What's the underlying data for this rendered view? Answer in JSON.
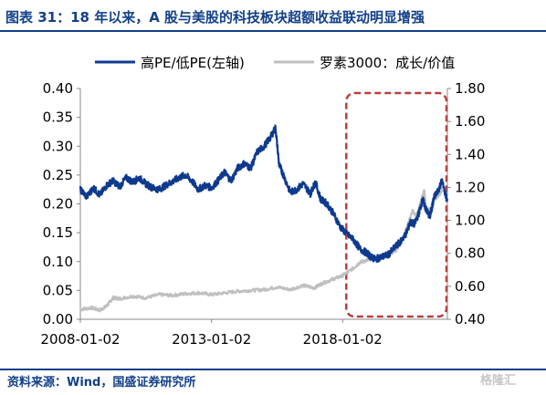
{
  "header": {
    "title": "图表 31：18 年以来，A 股与美股的科技板块超额收益联动明显增强"
  },
  "footer": {
    "source": "资料来源：Wind，国盛证券研究所",
    "watermark": "格隆汇"
  },
  "colors": {
    "brand": "#12408a",
    "series_primary": "#0d3a8e",
    "series_secondary": "#c0c0c0",
    "highlight_box": "#b8413f"
  },
  "chart_data": {
    "type": "line",
    "title": "",
    "xlabel": "",
    "ylabel": "",
    "x_ticks": [
      "2008-01-02",
      "2013-01-02",
      "2018-01-02"
    ],
    "y_left": {
      "lim": [
        0.0,
        0.4
      ],
      "ticks": [
        "0.00",
        "0.05",
        "0.10",
        "0.15",
        "0.20",
        "0.25",
        "0.30",
        "0.35",
        "0.40"
      ]
    },
    "y_right": {
      "lim": [
        0.4,
        1.8
      ],
      "ticks": [
        "0.40",
        "0.60",
        "0.80",
        "1.00",
        "1.20",
        "1.40",
        "1.60",
        "1.80"
      ]
    },
    "legend_position": "top",
    "x_domain": [
      "2008-01-02",
      "2021-12-31"
    ],
    "series": [
      {
        "name": "高PE/低PE(左轴)",
        "axis": "left",
        "color": "#0d3a8e",
        "points": [
          [
            "2008-01-02",
            0.225
          ],
          [
            "2008-04-01",
            0.212
          ],
          [
            "2008-07-01",
            0.228
          ],
          [
            "2008-10-01",
            0.215
          ],
          [
            "2009-01-02",
            0.232
          ],
          [
            "2009-04-01",
            0.24
          ],
          [
            "2009-07-01",
            0.23
          ],
          [
            "2009-10-01",
            0.245
          ],
          [
            "2010-01-04",
            0.238
          ],
          [
            "2010-04-01",
            0.245
          ],
          [
            "2010-07-01",
            0.235
          ],
          [
            "2010-10-01",
            0.228
          ],
          [
            "2011-01-04",
            0.225
          ],
          [
            "2011-04-01",
            0.232
          ],
          [
            "2011-07-01",
            0.238
          ],
          [
            "2011-10-01",
            0.245
          ],
          [
            "2012-01-04",
            0.25
          ],
          [
            "2012-04-01",
            0.24
          ],
          [
            "2012-07-01",
            0.225
          ],
          [
            "2012-10-01",
            0.232
          ],
          [
            "2013-01-04",
            0.228
          ],
          [
            "2013-04-01",
            0.24
          ],
          [
            "2013-07-01",
            0.255
          ],
          [
            "2013-10-01",
            0.24
          ],
          [
            "2014-01-02",
            0.262
          ],
          [
            "2014-04-01",
            0.27
          ],
          [
            "2014-07-01",
            0.262
          ],
          [
            "2014-10-01",
            0.29
          ],
          [
            "2015-01-05",
            0.3
          ],
          [
            "2015-04-01",
            0.315
          ],
          [
            "2015-06-12",
            0.332
          ],
          [
            "2015-08-01",
            0.268
          ],
          [
            "2015-10-01",
            0.25
          ],
          [
            "2016-01-04",
            0.22
          ],
          [
            "2016-04-01",
            0.225
          ],
          [
            "2016-07-01",
            0.235
          ],
          [
            "2016-10-10",
            0.218
          ],
          [
            "2016-12-20",
            0.238
          ],
          [
            "2017-03-01",
            0.208
          ],
          [
            "2017-06-01",
            0.2
          ],
          [
            "2017-09-01",
            0.182
          ],
          [
            "2017-12-01",
            0.16
          ],
          [
            "2018-03-01",
            0.148
          ],
          [
            "2018-06-01",
            0.138
          ],
          [
            "2018-09-01",
            0.122
          ],
          [
            "2018-12-03",
            0.115
          ],
          [
            "2019-02-01",
            0.108
          ],
          [
            "2019-04-01",
            0.104
          ],
          [
            "2019-07-01",
            0.108
          ],
          [
            "2019-10-01",
            0.112
          ],
          [
            "2020-01-02",
            0.125
          ],
          [
            "2020-03-20",
            0.135
          ],
          [
            "2020-06-01",
            0.148
          ],
          [
            "2020-08-01",
            0.168
          ],
          [
            "2020-10-01",
            0.165
          ],
          [
            "2020-12-01",
            0.185
          ],
          [
            "2021-01-20",
            0.208
          ],
          [
            "2021-03-10",
            0.19
          ],
          [
            "2021-05-01",
            0.178
          ],
          [
            "2021-06-01",
            0.195
          ],
          [
            "2021-07-01",
            0.212
          ],
          [
            "2021-09-01",
            0.225
          ],
          [
            "2021-10-15",
            0.24
          ],
          [
            "2021-12-31",
            0.205
          ]
        ]
      },
      {
        "name": "罗素3000：成长/价值",
        "axis": "right",
        "color": "#c0c0c0",
        "points": [
          [
            "2008-01-02",
            0.46
          ],
          [
            "2008-06-01",
            0.47
          ],
          [
            "2008-10-01",
            0.455
          ],
          [
            "2009-01-02",
            0.48
          ],
          [
            "2009-04-01",
            0.53
          ],
          [
            "2009-07-01",
            0.525
          ],
          [
            "2010-01-04",
            0.54
          ],
          [
            "2010-07-01",
            0.53
          ],
          [
            "2011-01-04",
            0.55
          ],
          [
            "2011-07-01",
            0.545
          ],
          [
            "2012-01-04",
            0.555
          ],
          [
            "2012-07-01",
            0.56
          ],
          [
            "2013-01-04",
            0.55
          ],
          [
            "2013-07-01",
            0.56
          ],
          [
            "2014-01-02",
            0.57
          ],
          [
            "2014-07-01",
            0.575
          ],
          [
            "2015-01-05",
            0.58
          ],
          [
            "2015-07-01",
            0.595
          ],
          [
            "2016-01-04",
            0.58
          ],
          [
            "2016-07-01",
            0.605
          ],
          [
            "2016-12-01",
            0.59
          ],
          [
            "2017-04-01",
            0.62
          ],
          [
            "2017-09-01",
            0.645
          ],
          [
            "2018-01-02",
            0.665
          ],
          [
            "2018-06-01",
            0.71
          ],
          [
            "2018-09-01",
            0.745
          ],
          [
            "2018-12-24",
            0.76
          ],
          [
            "2019-03-01",
            0.775
          ],
          [
            "2019-06-01",
            0.785
          ],
          [
            "2019-09-01",
            0.79
          ],
          [
            "2019-12-31",
            0.81
          ],
          [
            "2020-03-20",
            0.86
          ],
          [
            "2020-06-01",
            0.94
          ],
          [
            "2020-09-02",
            1.06
          ],
          [
            "2020-11-01",
            1.02
          ],
          [
            "2020-12-15",
            1.1
          ],
          [
            "2021-02-10",
            1.18
          ],
          [
            "2021-03-08",
            1.07
          ],
          [
            "2021-05-01",
            1.06
          ],
          [
            "2021-07-01",
            1.13
          ],
          [
            "2021-09-01",
            1.15
          ],
          [
            "2021-11-15",
            1.2
          ],
          [
            "2021-12-31",
            1.12
          ]
        ]
      }
    ],
    "highlight": {
      "x_start": "2018-01-02",
      "x_end": "2021-12-31",
      "style": "dashed-rounded-box"
    }
  }
}
